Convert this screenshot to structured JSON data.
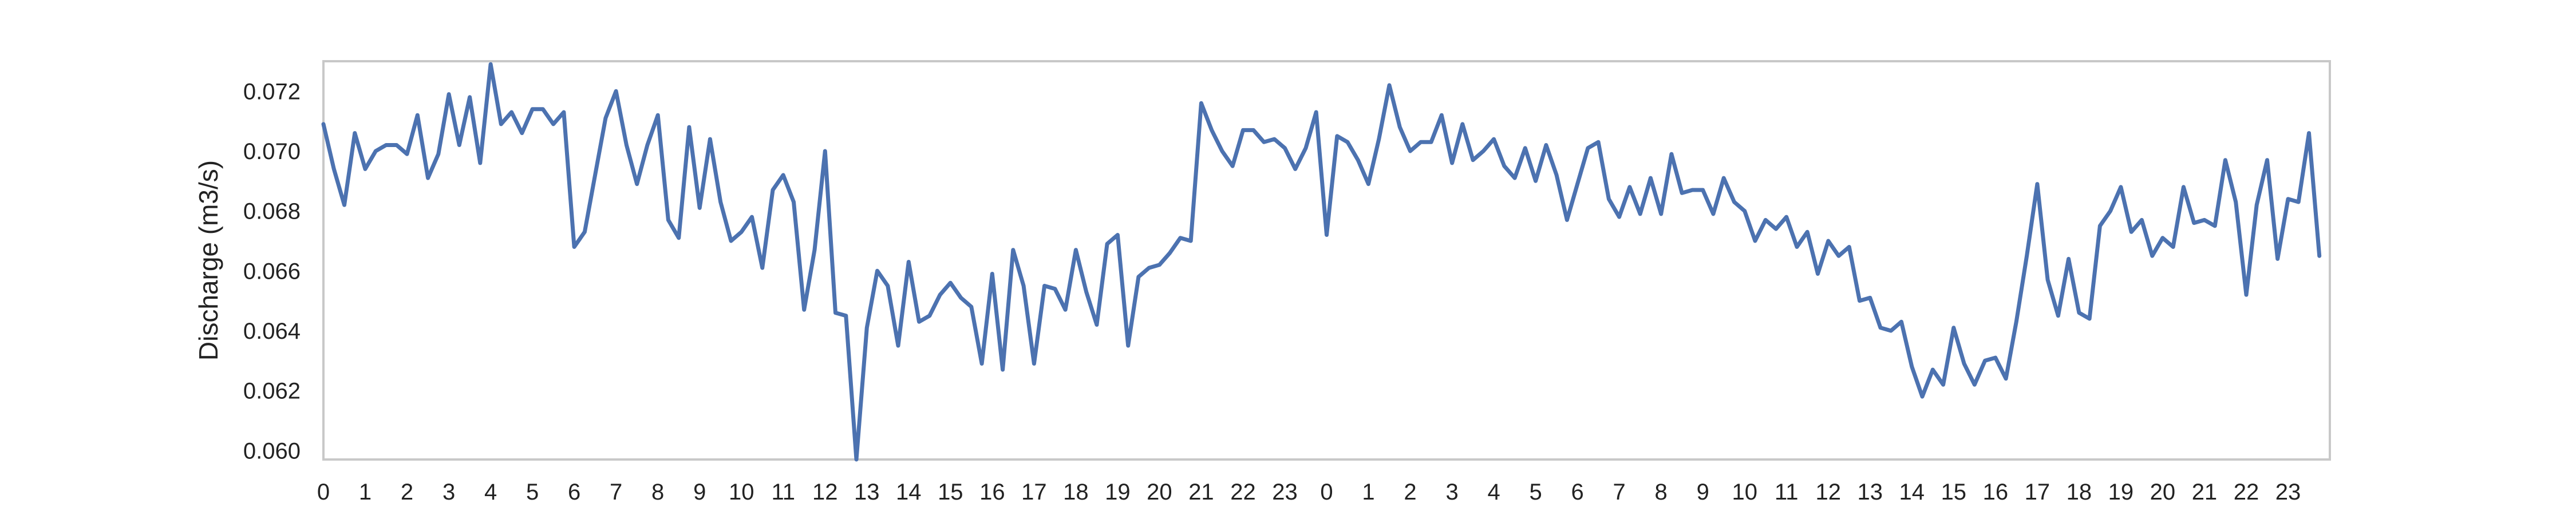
{
  "chart_data": {
    "type": "line",
    "title": "",
    "xlabel": "",
    "ylabel": "Discharge (m3/s)",
    "ylim": [
      0.0597,
      0.073
    ],
    "grid": false,
    "legend": "none",
    "x_tick_labels": [
      "0",
      "1",
      "2",
      "3",
      "4",
      "5",
      "6",
      "7",
      "8",
      "9",
      "10",
      "11",
      "12",
      "13",
      "14",
      "15",
      "16",
      "17",
      "18",
      "19",
      "20",
      "21",
      "22",
      "23",
      "0",
      "1",
      "2",
      "3",
      "4",
      "5",
      "6",
      "7",
      "8",
      "9",
      "10",
      "11",
      "12",
      "13",
      "14",
      "15",
      "16",
      "17",
      "18",
      "19",
      "20",
      "21",
      "22",
      "23"
    ],
    "y_ticks": [
      0.06,
      0.062,
      0.064,
      0.066,
      0.068,
      0.07,
      0.072
    ],
    "y_tick_labels": [
      "0.060",
      "0.062",
      "0.064",
      "0.066",
      "0.068",
      "0.070",
      "0.072"
    ],
    "series": [
      {
        "color": "#4c72b0",
        "x_step_hours": 0.25,
        "values": [
          0.0709,
          0.0694,
          0.0682,
          0.0706,
          0.0694,
          0.07,
          0.0702,
          0.0702,
          0.0699,
          0.0712,
          0.0691,
          0.0699,
          0.0719,
          0.0702,
          0.0718,
          0.0696,
          0.0729,
          0.0709,
          0.0713,
          0.0706,
          0.0714,
          0.0714,
          0.0709,
          0.0713,
          0.0668,
          0.0673,
          0.0692,
          0.0711,
          0.072,
          0.0702,
          0.0689,
          0.0702,
          0.0712,
          0.0677,
          0.0671,
          0.0708,
          0.0681,
          0.0704,
          0.0683,
          0.067,
          0.0673,
          0.0678,
          0.0661,
          0.0687,
          0.0692,
          0.0683,
          0.0647,
          0.0667,
          0.07,
          0.0646,
          0.0645,
          0.0597,
          0.0641,
          0.066,
          0.0655,
          0.0635,
          0.0663,
          0.0643,
          0.0645,
          0.0652,
          0.0656,
          0.0651,
          0.0648,
          0.0629,
          0.0659,
          0.0627,
          0.0667,
          0.0655,
          0.0629,
          0.0655,
          0.0654,
          0.0647,
          0.0667,
          0.0653,
          0.0642,
          0.0669,
          0.0672,
          0.0635,
          0.0658,
          0.0661,
          0.0662,
          0.0666,
          0.0671,
          0.067,
          0.0716,
          0.0707,
          0.07,
          0.0695,
          0.0707,
          0.0707,
          0.0703,
          0.0704,
          0.0701,
          0.0694,
          0.0701,
          0.0713,
          0.0672,
          0.0705,
          0.0703,
          0.0697,
          0.0689,
          0.0704,
          0.0722,
          0.0708,
          0.07,
          0.0703,
          0.0703,
          0.0712,
          0.0696,
          0.0709,
          0.0697,
          0.07,
          0.0704,
          0.0695,
          0.0691,
          0.0701,
          0.069,
          0.0702,
          0.0692,
          0.0677,
          0.0689,
          0.0701,
          0.0703,
          0.0684,
          0.0678,
          0.0688,
          0.0679,
          0.0691,
          0.0679,
          0.0699,
          0.0686,
          0.0687,
          0.0687,
          0.0679,
          0.0691,
          0.0683,
          0.068,
          0.067,
          0.0677,
          0.0674,
          0.0678,
          0.0668,
          0.0673,
          0.0659,
          0.067,
          0.0665,
          0.0668,
          0.065,
          0.0651,
          0.0641,
          0.064,
          0.0643,
          0.0628,
          0.0618,
          0.0627,
          0.0622,
          0.0641,
          0.0629,
          0.0622,
          0.063,
          0.0631,
          0.0624,
          0.0643,
          0.0665,
          0.0689,
          0.0657,
          0.0645,
          0.0664,
          0.0646,
          0.0644,
          0.0675,
          0.068,
          0.0688,
          0.0673,
          0.0677,
          0.0665,
          0.0671,
          0.0668,
          0.0688,
          0.0676,
          0.0677,
          0.0675,
          0.0697,
          0.0683,
          0.0652,
          0.0682,
          0.0697,
          0.0664,
          0.0684,
          0.0683,
          0.0706,
          0.0665
        ]
      }
    ]
  }
}
